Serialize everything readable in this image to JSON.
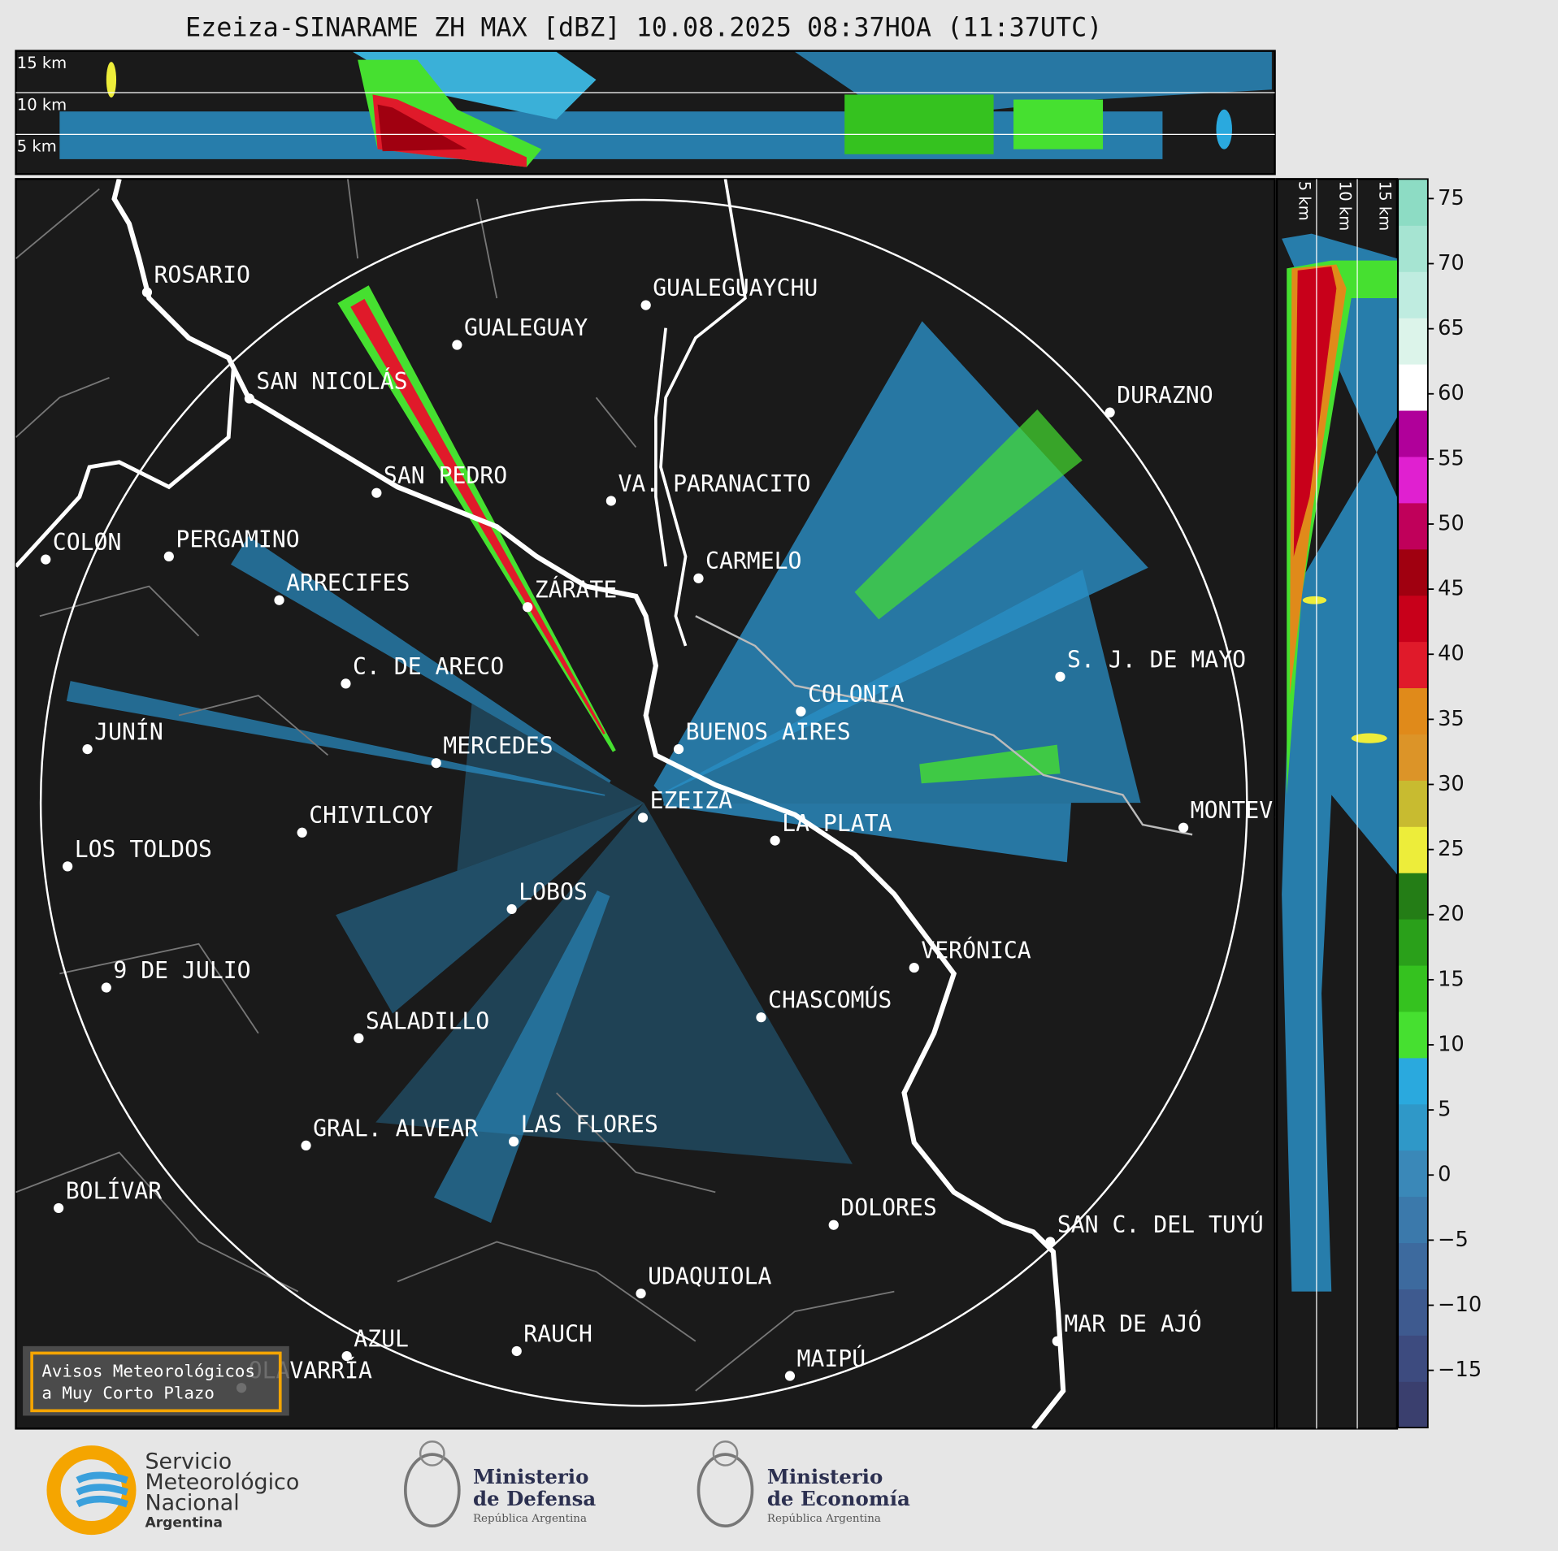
{
  "title": "Ezeiza-SINARAME ZH MAX [dBZ] 10.08.2025 08:37HOA (11:37UTC)",
  "top_panel": {
    "height_labels": [
      "15 km",
      "10 km",
      "5 km"
    ]
  },
  "side_panel": {
    "height_labels": [
      "5 km",
      "10 km",
      "15 km"
    ]
  },
  "cities": [
    "ROSARIO",
    "GUALEGUAYCHU",
    "GUALEGUAY",
    "SAN NICOLÁS",
    "DURAZNO",
    "SAN PEDRO",
    "VA. PARANACITO",
    "COLON",
    "PERGAMINO",
    "CARMELO",
    "ARRECIFES",
    "ZÁRATE",
    "C. DE ARECO",
    "S. J. DE MAYO",
    "COLONIA",
    "JUNÍN",
    "BUENOS AIRES",
    "MERCEDES",
    "EZEIZA",
    "MONTEVIDEO",
    "CHIVILCOY",
    "LA PLATA",
    "LOS TOLDOS",
    "LOBOS",
    "VERÓNICA",
    "9 DE JULIO",
    "CHASCOMÚS",
    "SALADILLO",
    "GRAL. ALVEAR",
    "LAS FLORES",
    "BOLÍVAR",
    "DOLORES",
    "SAN C. DEL TUYÚ",
    "UDAQUIOLA",
    "MAR DE AJÓ",
    "RAUCH",
    "AZUL",
    "MAIPÚ",
    "OLAVARRÍA"
  ],
  "colorbar": {
    "lim": [
      -19.4,
      76.5
    ],
    "ticks": [
      75,
      70,
      65,
      60,
      55,
      50,
      45,
      40,
      35,
      30,
      25,
      20,
      15,
      10,
      5,
      0,
      {
        "value": -5,
        "label": "−5"
      },
      {
        "value": -10,
        "label": "−10"
      },
      {
        "value": -15,
        "label": "−15"
      }
    ],
    "colors": [
      "#3a3f6e",
      "#3d4b7f",
      "#3e5a8f",
      "#3d6a9e",
      "#3b79ab",
      "#3a88b8",
      "#2f98c8",
      "#2aa9de",
      "#46e030",
      "#35c21f",
      "#2aa01a",
      "#247d16",
      "#eded3a",
      "#c8bb30",
      "#dc9428",
      "#e08a1a",
      "#e01a2a",
      "#c8001a",
      "#a00010",
      "#c0005a",
      "#e020d0",
      "#b0009a",
      "#ffffff",
      "#dcf4ea",
      "#bfece0",
      "#a6e4d2",
      "#8ddcc4"
    ]
  },
  "warning_box": [
    "Avisos Meteorológicos",
    "a Muy Corto Plazo"
  ],
  "logos": {
    "smn": [
      "Servicio",
      "Meteorológico",
      "Nacional",
      "Argentina"
    ],
    "defensa": [
      "Ministerio",
      "de Defensa",
      "República Argentina"
    ],
    "economia": [
      "Ministerio",
      "de Economía",
      "República Argentina"
    ]
  }
}
